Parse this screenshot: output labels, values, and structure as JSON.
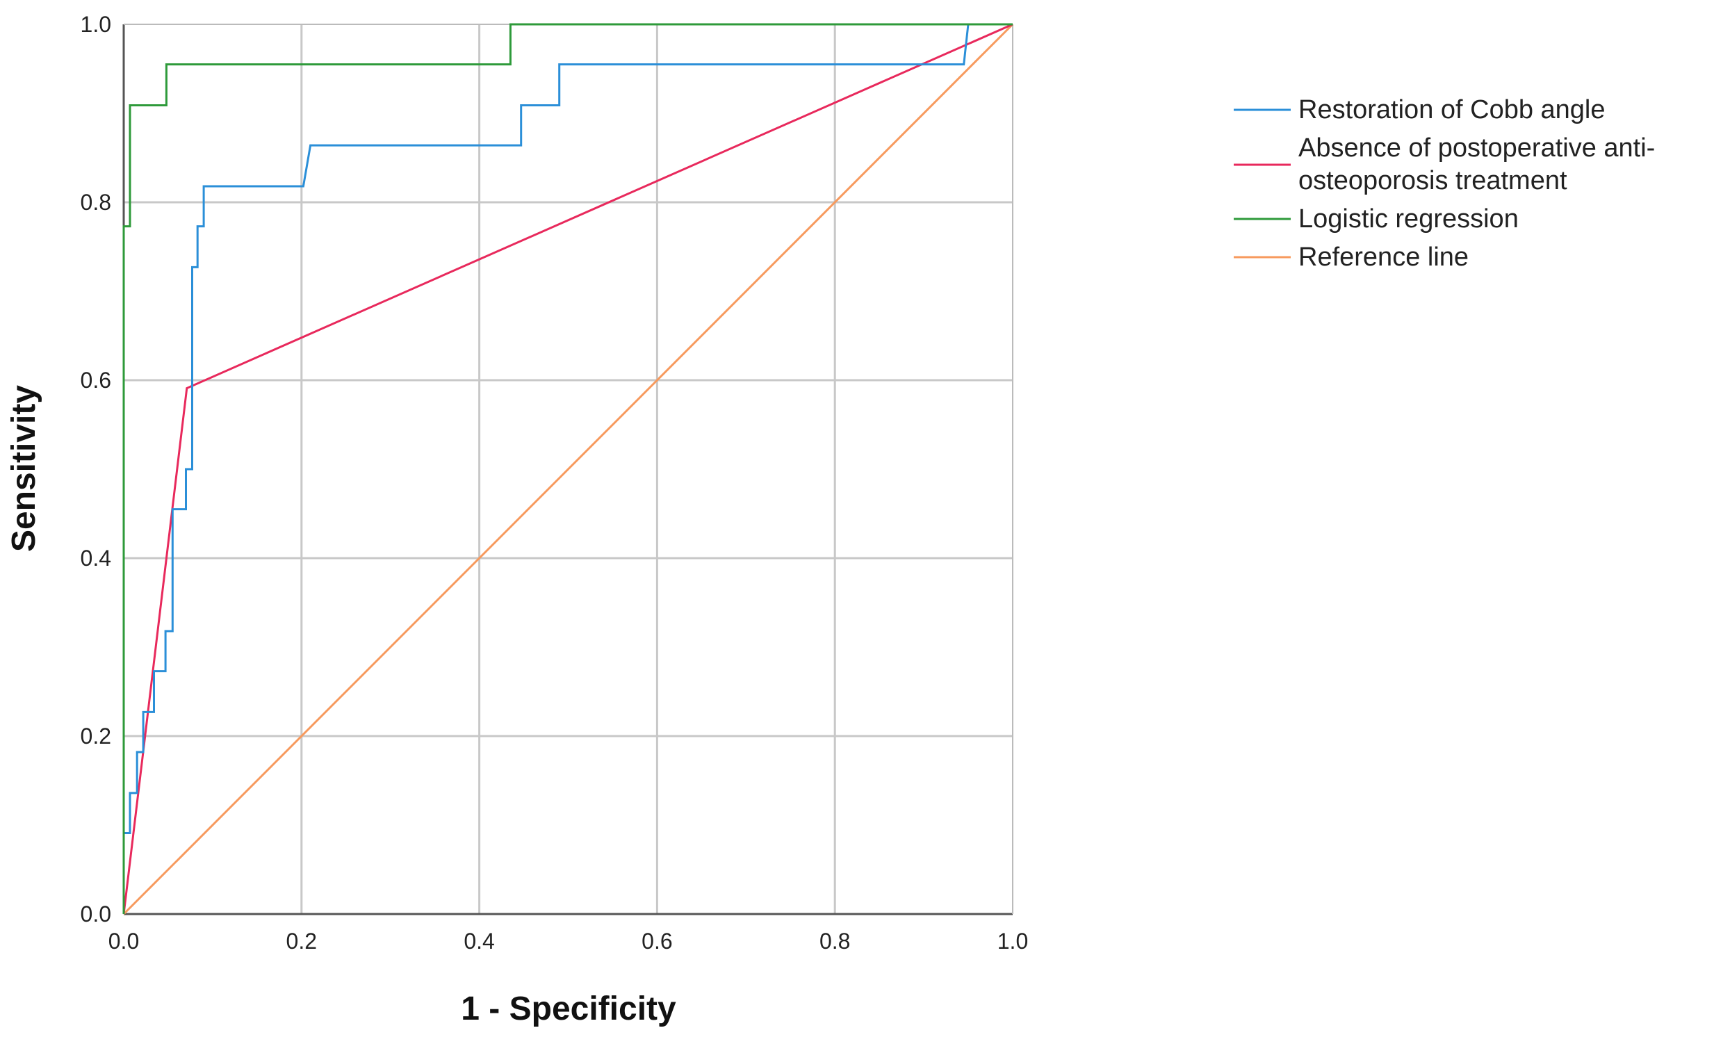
{
  "chart_data": {
    "type": "line",
    "title": "",
    "xlabel": "1 - Specificity",
    "ylabel": "Sensitivity",
    "xlim": [
      0.0,
      1.0
    ],
    "ylim": [
      0.0,
      1.0
    ],
    "x_ticks": [
      "0.0",
      "0.2",
      "0.4",
      "0.6",
      "0.8",
      "1.0"
    ],
    "y_ticks": [
      "0.0",
      "0.2",
      "0.4",
      "0.6",
      "0.8",
      "1.0"
    ],
    "grid": true,
    "legend_position": "right",
    "series": [
      {
        "name": "Restoration of Cobb angle",
        "color": "#2b8fd8",
        "points": [
          [
            0,
            0
          ],
          [
            0,
            0.091
          ],
          [
            0.007,
            0.091
          ],
          [
            0.007,
            0.136
          ],
          [
            0.015,
            0.136
          ],
          [
            0.015,
            0.182
          ],
          [
            0.022,
            0.182
          ],
          [
            0.022,
            0.227
          ],
          [
            0.034,
            0.227
          ],
          [
            0.034,
            0.273
          ],
          [
            0.047,
            0.273
          ],
          [
            0.047,
            0.318
          ],
          [
            0.055,
            0.318
          ],
          [
            0.055,
            0.455
          ],
          [
            0.07,
            0.455
          ],
          [
            0.07,
            0.5
          ],
          [
            0.077,
            0.5
          ],
          [
            0.077,
            0.727
          ],
          [
            0.083,
            0.727
          ],
          [
            0.083,
            0.773
          ],
          [
            0.09,
            0.773
          ],
          [
            0.09,
            0.818
          ],
          [
            0.202,
            0.818
          ],
          [
            0.21,
            0.864
          ],
          [
            0.447,
            0.864
          ],
          [
            0.447,
            0.909
          ],
          [
            0.49,
            0.909
          ],
          [
            0.49,
            0.955
          ],
          [
            0.945,
            0.955
          ],
          [
            0.95,
            1.0
          ],
          [
            1.0,
            1.0
          ]
        ]
      },
      {
        "name": "Absence of postoperative anti-osteoporosis treatment",
        "label_lines": [
          "Absence of postoperative anti-",
          "osteoporosis treatment"
        ],
        "color": "#e8295c",
        "points": [
          [
            0,
            0
          ],
          [
            0.071,
            0.591
          ],
          [
            1.0,
            1.0
          ]
        ]
      },
      {
        "name": "Logistic regression",
        "color": "#2e9a3a",
        "points": [
          [
            0,
            0
          ],
          [
            0,
            0.773
          ],
          [
            0.007,
            0.773
          ],
          [
            0.007,
            0.909
          ],
          [
            0.048,
            0.909
          ],
          [
            0.048,
            0.955
          ],
          [
            0.435,
            0.955
          ],
          [
            0.435,
            1.0
          ],
          [
            1.0,
            1.0
          ]
        ]
      },
      {
        "name": "Reference line",
        "color": "#f79a5e",
        "points": [
          [
            0,
            0
          ],
          [
            1.0,
            1.0
          ]
        ]
      }
    ]
  }
}
